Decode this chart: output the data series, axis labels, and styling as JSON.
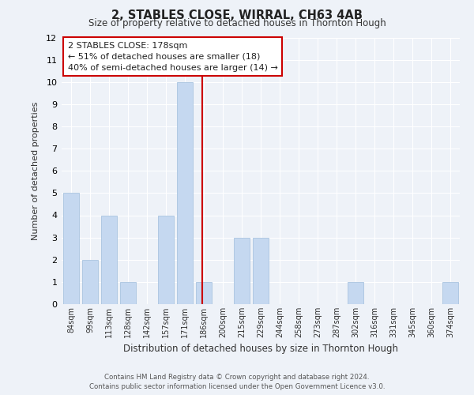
{
  "title_line1": "2, STABLES CLOSE, WIRRAL, CH63 4AB",
  "title_line2": "Size of property relative to detached houses in Thornton Hough",
  "xlabel": "Distribution of detached houses by size in Thornton Hough",
  "ylabel": "Number of detached properties",
  "categories": [
    "84sqm",
    "99sqm",
    "113sqm",
    "128sqm",
    "142sqm",
    "157sqm",
    "171sqm",
    "186sqm",
    "200sqm",
    "215sqm",
    "229sqm",
    "244sqm",
    "258sqm",
    "273sqm",
    "287sqm",
    "302sqm",
    "316sqm",
    "331sqm",
    "345sqm",
    "360sqm",
    "374sqm"
  ],
  "values": [
    5,
    2,
    4,
    1,
    0,
    4,
    10,
    1,
    0,
    3,
    3,
    0,
    0,
    0,
    0,
    1,
    0,
    0,
    0,
    0,
    1
  ],
  "bar_color": "#c5d8f0",
  "bar_edge_color": "#aac4e0",
  "highlight_line_color": "#cc0000",
  "red_line_x": 6.9,
  "ylim": [
    0,
    12
  ],
  "yticks": [
    0,
    1,
    2,
    3,
    4,
    5,
    6,
    7,
    8,
    9,
    10,
    11,
    12
  ],
  "annotation_title": "2 STABLES CLOSE: 178sqm",
  "annotation_line1": "← 51% of detached houses are smaller (18)",
  "annotation_line2": "40% of semi-detached houses are larger (14) →",
  "annotation_box_color": "#ffffff",
  "annotation_box_edge": "#cc0000",
  "footer_line1": "Contains HM Land Registry data © Crown copyright and database right 2024.",
  "footer_line2": "Contains public sector information licensed under the Open Government Licence v3.0.",
  "bg_color": "#eef2f8",
  "plot_bg_color": "#eef2f8",
  "grid_color": "#ffffff",
  "fig_width": 6.0,
  "fig_height": 5.0
}
